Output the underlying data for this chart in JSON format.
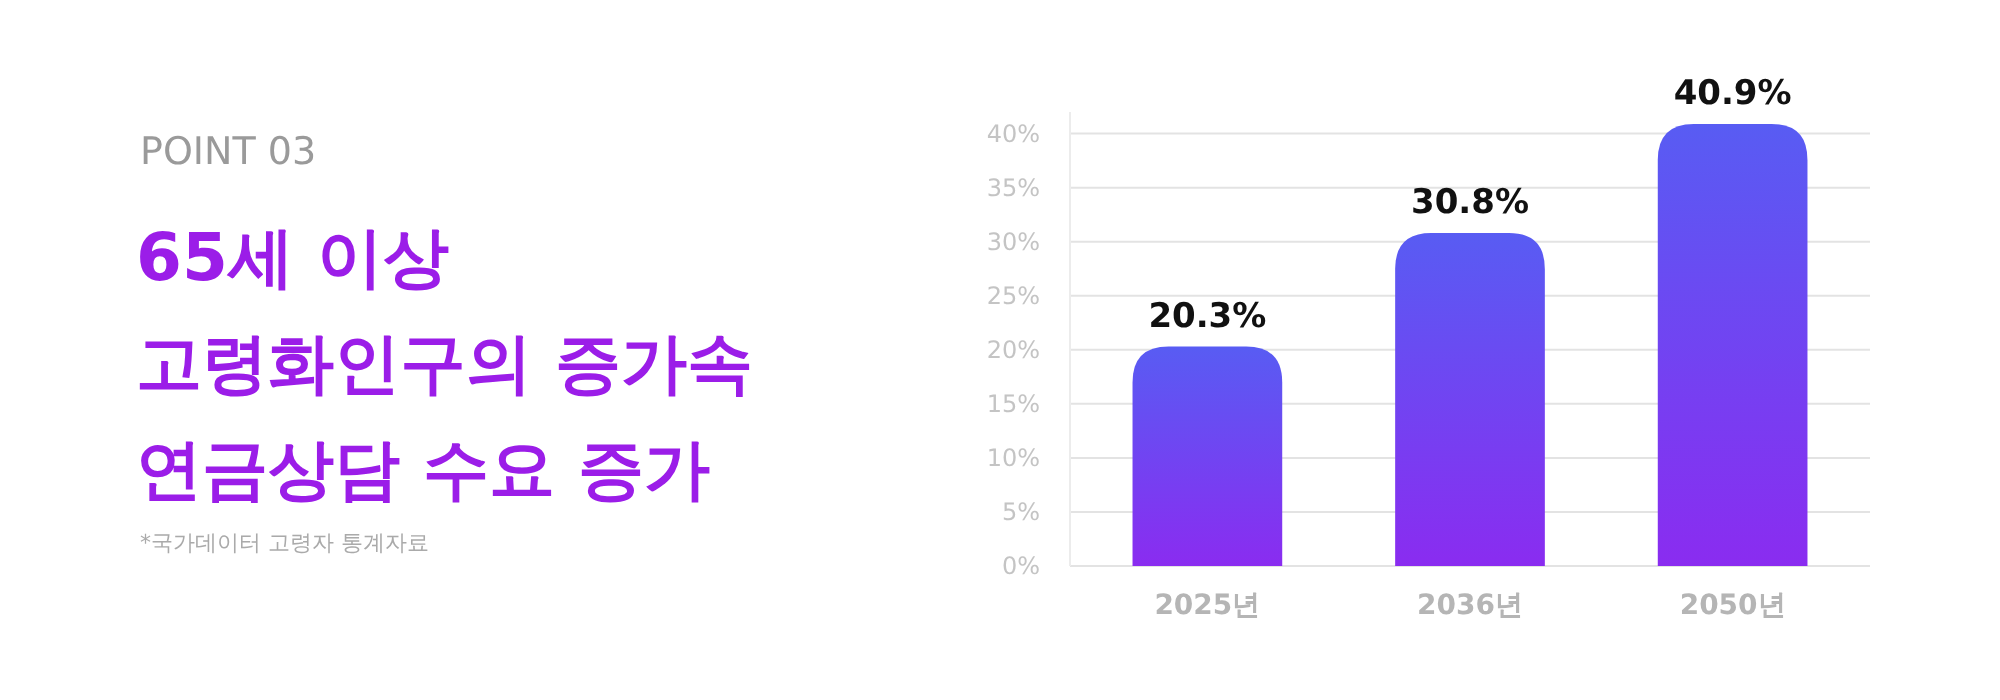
{
  "chart_data": {
    "type": "bar",
    "subtitle": "POINT 03",
    "title": "65세 이상\n고령화인구의 증가속\n연금상담 수요 증가",
    "annotations": [
      "*국가데이터 고령자 통계자료"
    ],
    "categories": [
      "2025년",
      "2036년",
      "2050년"
    ],
    "values": [
      20.3,
      30.8,
      40.9
    ],
    "value_labels": [
      "20.3%",
      "30.8%",
      "40.9%"
    ],
    "color": "#8a2cf0",
    "ylim": [
      0,
      42
    ],
    "yticks": [
      {
        "value": 0,
        "label": "0%"
      },
      {
        "value": 5,
        "label": "5%"
      },
      {
        "value": 10,
        "label": "10%"
      },
      {
        "value": 15,
        "label": "15%"
      },
      {
        "value": 20,
        "label": "20%"
      },
      {
        "value": 25,
        "label": "25%"
      },
      {
        "value": 30,
        "label": "30%"
      },
      {
        "value": 35,
        "label": "35%"
      },
      {
        "value": 40,
        "label": "40%"
      }
    ],
    "grid": "y"
  }
}
